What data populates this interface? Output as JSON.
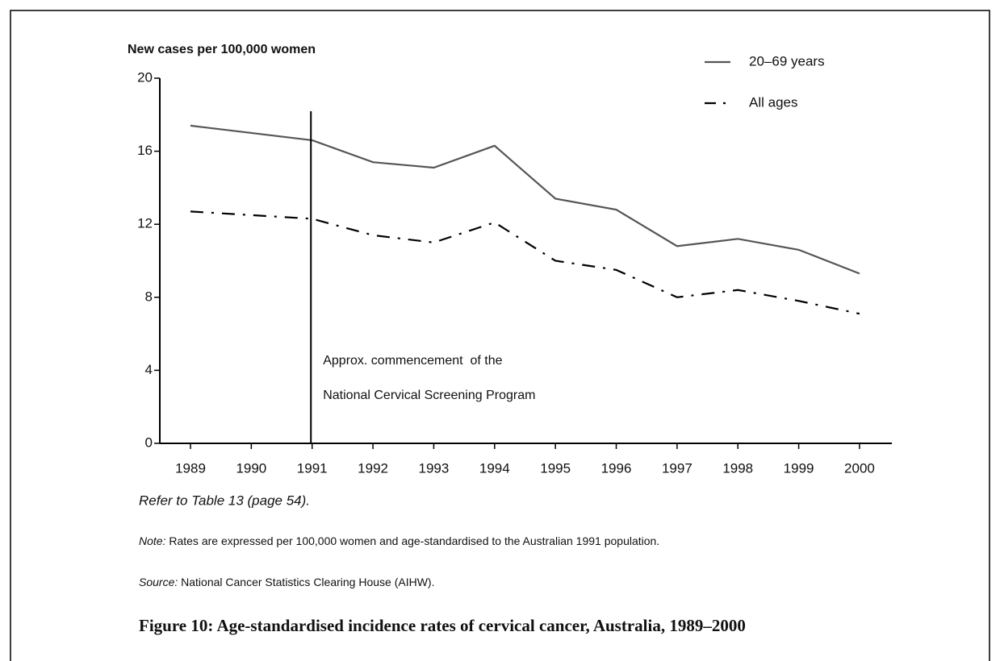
{
  "chart_data": {
    "type": "line",
    "title": "Figure 10: Age-standardised incidence rates of cervical cancer, Australia, 1989–2000",
    "y_label": "New cases per 100,000 women",
    "categories": [
      "1989",
      "1990",
      "1991",
      "1992",
      "1993",
      "1994",
      "1995",
      "1996",
      "1997",
      "1998",
      "1999",
      "2000"
    ],
    "series": [
      {
        "name": "20–69 years",
        "color": "#555555",
        "dash": "solid",
        "values": [
          17.4,
          17.0,
          16.6,
          15.4,
          15.1,
          16.3,
          13.4,
          12.8,
          10.8,
          11.2,
          10.6,
          9.3
        ]
      },
      {
        "name": "All ages",
        "color": "#000000",
        "dash": "dashdot",
        "values": [
          12.7,
          12.5,
          12.3,
          11.4,
          11.0,
          12.1,
          10.0,
          9.5,
          8.0,
          8.4,
          7.8,
          7.1
        ]
      }
    ],
    "ylim": [
      0,
      20
    ],
    "yticks": [
      0,
      4,
      8,
      12,
      16,
      20
    ],
    "grid": false,
    "annotation": {
      "category_index": 2,
      "lines": [
        "Approx. commencement  of the",
        "National Cervical Screening Program"
      ]
    },
    "legend": "upper right"
  },
  "notes": {
    "reference": "Refer to Table 13 (page 54).",
    "note_label": "Note:",
    "note_text": " Rates are expressed per 100,000 women and age-standardised to the Australian 1991 population.",
    "source_label": "Source:",
    "source_text": " National Cancer Statistics Clearing House (AIHW)."
  }
}
